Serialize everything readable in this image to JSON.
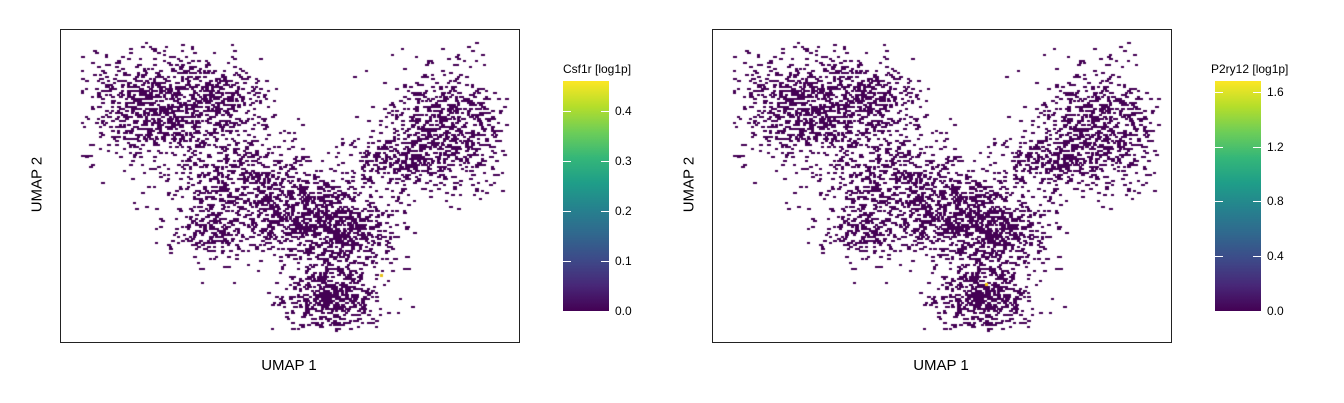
{
  "chart_data": [
    {
      "type": "scatter",
      "xlabel": "UMAP 1",
      "ylabel": "UMAP 2",
      "legend": {
        "title": "Csf1r [log1p]",
        "ticks": [
          "0.0",
          "0.1",
          "0.2",
          "0.3",
          "0.4"
        ],
        "range": [
          0,
          0.46
        ]
      },
      "colormap": "viridis",
      "point_color": "#440154",
      "highlight_points": [
        {
          "x": 3.95,
          "y": -4.55,
          "value": 0.45,
          "color": "#e7c01a"
        }
      ]
    },
    {
      "type": "scatter",
      "xlabel": "UMAP 1",
      "ylabel": "UMAP 2",
      "legend": {
        "title": "P2ry12 [log1p]",
        "ticks": [
          "0.0",
          "0.4",
          "0.8",
          "1.2",
          "1.6"
        ],
        "range": [
          0,
          1.68
        ]
      },
      "colormap": "viridis",
      "point_color": "#440154",
      "highlight_points": [
        {
          "x": 3.4,
          "y": -4.9,
          "value": 1.65,
          "color": "#f1c40f"
        }
      ]
    }
  ]
}
